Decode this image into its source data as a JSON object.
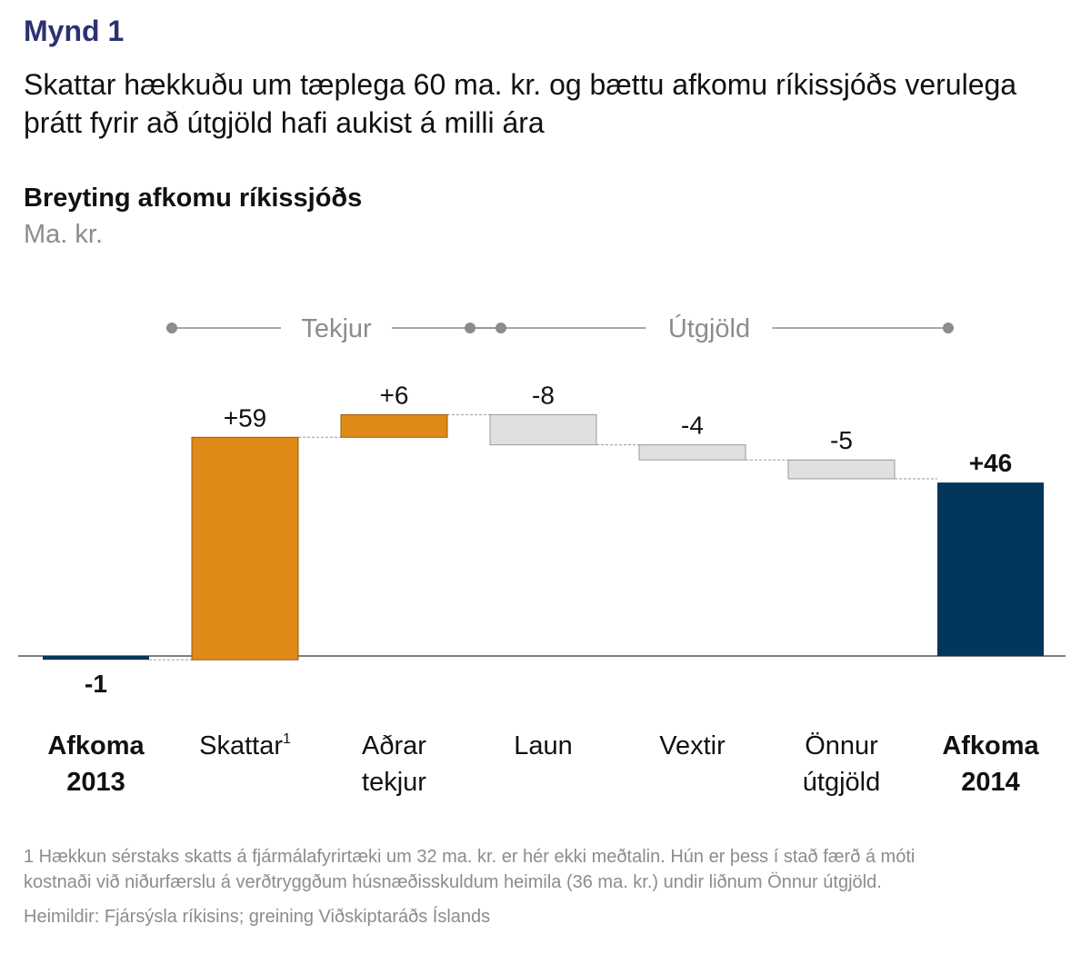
{
  "figure_label": "Mynd 1",
  "headline": "Skattar hækkuðu um tæplega 60 ma. kr. og bættu afkomu ríkissjóðs verulega þrátt fyrir að útgjöld hafi aukist á milli ára",
  "chart_data": {
    "type": "waterfall",
    "title": "Breyting afkomu ríkissjóðs",
    "subtitle": "Ma. kr.",
    "categories": [
      {
        "lines": [
          "Afkoma",
          "2013"
        ],
        "bold": true,
        "sup": ""
      },
      {
        "lines": [
          "Skattar"
        ],
        "bold": false,
        "sup": "1"
      },
      {
        "lines": [
          "Aðrar",
          "tekjur"
        ],
        "bold": false,
        "sup": ""
      },
      {
        "lines": [
          "Laun"
        ],
        "bold": false,
        "sup": ""
      },
      {
        "lines": [
          "Vextir"
        ],
        "bold": false,
        "sup": ""
      },
      {
        "lines": [
          "Önnur",
          "útgjöld"
        ],
        "bold": false,
        "sup": ""
      },
      {
        "lines": [
          "Afkoma",
          "2014"
        ],
        "bold": true,
        "sup": ""
      }
    ],
    "values": [
      -1,
      59,
      6,
      -8,
      -4,
      -5,
      46
    ],
    "value_labels": [
      "-1",
      "+59",
      "+6",
      "-8",
      "-4",
      "-5",
      "+46"
    ],
    "kinds": [
      "total",
      "increase",
      "increase",
      "decrease",
      "decrease",
      "decrease",
      "total"
    ],
    "groups": [
      {
        "label": "Tekjur",
        "from": 1,
        "to": 2
      },
      {
        "label": "Útgjöld",
        "from": 3,
        "to": 5
      }
    ],
    "colors": {
      "total": "#00375a",
      "increase": "#df8917",
      "decrease": "#e0e0e0",
      "increase_stroke": "#9a5a0a",
      "decrease_stroke": "#9a9a9a",
      "connector": "#9a9a9a",
      "group": "#8c8c8c"
    },
    "grid": false,
    "legend": "none"
  },
  "footnote_lines": [
    "1 Hækkun sérstaks skatts á fjármálafyrirtæki um 32 ma. kr. er hér ekki meðtalin. Hún er þess í stað færð á móti",
    "kostnaði við niðurfærslu á verðtryggðum húsnæðisskuldum heimila (36 ma. kr.) undir liðnum Önnur útgjöld."
  ],
  "source": "Heimildir: Fjársýsla ríkisins; greining Viðskiptaráðs Íslands"
}
